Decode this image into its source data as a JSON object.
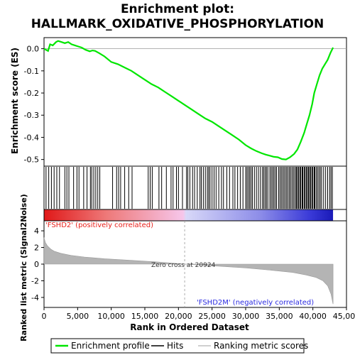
{
  "chart_data": {
    "type": "line",
    "title_line1": "Enrichment plot:",
    "title_line2": "HALLMARK_OXIDATIVE_PHOSPHORYLATION",
    "ylabel_top": "Enrichment score (ES)",
    "ylabel_bottom": "Ranked list metric (Signal2Noise)",
    "xlabel": "Rank in Ordered Dataset",
    "x_range": [
      0,
      45000
    ],
    "x_ticks": [
      0,
      5000,
      10000,
      15000,
      20000,
      25000,
      30000,
      35000,
      40000,
      45000
    ],
    "x_tick_labels": [
      "0",
      "5,000",
      "10,000",
      "15,000",
      "20,000",
      "25,000",
      "30,000",
      "35,000",
      "40,000",
      "45,000"
    ],
    "es_range": [
      -0.53,
      0.05
    ],
    "es_ticks": [
      0.0,
      -0.1,
      -0.2,
      -0.3,
      -0.4,
      -0.5
    ],
    "es_tick_labels": [
      "0.0",
      "-0.1",
      "-0.2",
      "-0.3",
      "-0.4",
      "-0.5"
    ],
    "metric_range": [
      -5.2,
      5.2
    ],
    "metric_ticks": [
      4,
      2,
      0,
      -2,
      -4
    ],
    "metric_tick_labels": [
      "4",
      "2",
      "0",
      "-2",
      "-4"
    ],
    "total_ranks": 43000,
    "zero_cross": 20924,
    "zero_cross_label": "Zero cross at 20924",
    "pos_label": "'FSHD2' (positively correlated)",
    "neg_label": "'FSHD2M' (negatively correlated)",
    "colors": {
      "es_line": "#00e600",
      "pos_label": "#e8201a",
      "neg_label": "#2a2ae0",
      "metric_fill": "#b4b4b4",
      "hit": "#000000"
    },
    "enrichment_series": {
      "name": "Enrichment profile",
      "x": [
        0,
        600,
        900,
        1300,
        1800,
        2100,
        2600,
        3100,
        3600,
        4100,
        4600,
        5100,
        5600,
        6200,
        6800,
        7200,
        7600,
        8200,
        9000,
        10000,
        11000,
        12000,
        13000,
        14000,
        15000,
        16000,
        17000,
        18000,
        19000,
        20000,
        21000,
        22000,
        23000,
        24000,
        25000,
        26000,
        27000,
        28000,
        29000,
        30000,
        30800,
        31600,
        32400,
        33000,
        33600,
        34200,
        34800,
        35400,
        36000,
        36600,
        37200,
        37700,
        38200,
        38700,
        39100,
        39500,
        39900,
        40200,
        40600,
        41000,
        41400,
        41800,
        42200,
        42600,
        43000
      ],
      "y": [
        0.0,
        -0.01,
        0.02,
        0.015,
        0.03,
        0.035,
        0.03,
        0.025,
        0.03,
        0.02,
        0.015,
        0.01,
        0.005,
        -0.005,
        -0.012,
        -0.008,
        -0.01,
        -0.02,
        -0.035,
        -0.06,
        -0.07,
        -0.085,
        -0.1,
        -0.12,
        -0.14,
        -0.16,
        -0.175,
        -0.195,
        -0.215,
        -0.235,
        -0.255,
        -0.275,
        -0.295,
        -0.315,
        -0.33,
        -0.35,
        -0.37,
        -0.39,
        -0.41,
        -0.435,
        -0.45,
        -0.462,
        -0.472,
        -0.478,
        -0.483,
        -0.488,
        -0.49,
        -0.498,
        -0.5,
        -0.49,
        -0.475,
        -0.455,
        -0.42,
        -0.38,
        -0.34,
        -0.3,
        -0.25,
        -0.2,
        -0.16,
        -0.12,
        -0.09,
        -0.07,
        -0.05,
        -0.02,
        0.005
      ]
    },
    "metric_series": {
      "name": "Ranking metric scores",
      "x": [
        0,
        200,
        500,
        1000,
        1500,
        2500,
        4000,
        6000,
        9000,
        13000,
        17000,
        20924,
        25000,
        30000,
        34000,
        37000,
        39000,
        40500,
        41500,
        42200,
        42700,
        43000
      ],
      "y": [
        3.2,
        2.6,
        2.2,
        1.8,
        1.55,
        1.3,
        1.05,
        0.85,
        0.65,
        0.45,
        0.25,
        0.0,
        -0.2,
        -0.45,
        -0.75,
        -1.0,
        -1.3,
        -1.6,
        -2.0,
        -2.6,
        -3.6,
        -4.8
      ]
    },
    "hit_ranks": [
      300,
      700,
      1100,
      1500,
      1900,
      2300,
      3100,
      3400,
      3700,
      4400,
      4900,
      5200,
      5900,
      6400,
      6900,
      7100,
      7400,
      7700,
      8000,
      8300,
      10200,
      10800,
      11100,
      11400,
      12000,
      12600,
      13100,
      15500,
      15800,
      16100,
      17100,
      17500,
      18200,
      18900,
      19200,
      19700,
      20000,
      20600,
      21200,
      21400,
      21700,
      22100,
      22400,
      22800,
      23200,
      23400,
      23700,
      24000,
      24300,
      24500,
      24700,
      25000,
      25300,
      25600,
      26000,
      26400,
      26700,
      27200,
      27600,
      28100,
      28400,
      28800,
      29200,
      29600,
      30000,
      30200,
      30400,
      30600,
      30800,
      31000,
      31300,
      31600,
      31900,
      32200,
      32500,
      32700,
      32900,
      33100,
      33300,
      33600,
      33800,
      34000,
      34200,
      34400,
      34600,
      34900,
      35100,
      35300,
      35500,
      35700,
      35900,
      36100,
      36300,
      36500,
      36700,
      36900,
      37100,
      37300,
      37500,
      37600,
      37800,
      37900,
      38100,
      38200,
      38400,
      38500,
      38700,
      38800,
      39000,
      39100,
      39300,
      39400,
      39600,
      39700,
      39900,
      40000,
      40200,
      40300,
      40500,
      40700,
      40900,
      41100,
      41300,
      41600,
      41900,
      42200,
      42500,
      42700,
      42900
    ],
    "legend": [
      {
        "name": "Enrichment profile",
        "color": "#00e600"
      },
      {
        "name": "Hits",
        "color": "#000000"
      },
      {
        "name": "Ranking metric scores",
        "color": "#b4b4b4"
      }
    ]
  }
}
